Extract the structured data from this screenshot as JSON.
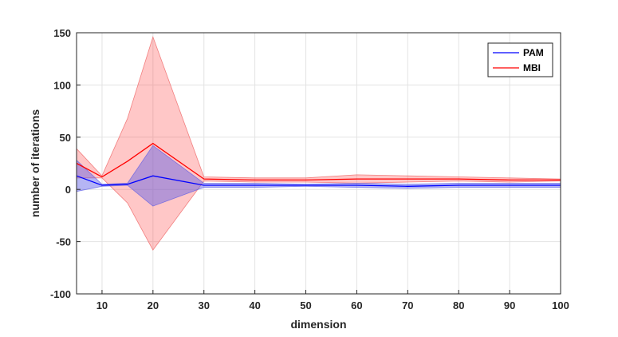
{
  "chart_data": {
    "type": "line",
    "xlabel": "dimension",
    "ylabel": "number of iterations",
    "xlim": [
      5,
      100
    ],
    "ylim": [
      -100,
      150
    ],
    "xticks": [
      10,
      20,
      30,
      40,
      50,
      60,
      70,
      80,
      90,
      100
    ],
    "yticks": [
      -100,
      -50,
      0,
      50,
      100,
      150
    ],
    "grid": true,
    "legend_position": "top-right",
    "x": [
      5,
      10,
      15,
      20,
      30,
      40,
      50,
      60,
      70,
      80,
      90,
      100
    ],
    "series": [
      {
        "name": "PAM",
        "color": "#0000ff",
        "mean": [
          13,
          4,
          5,
          13,
          4,
          4,
          4,
          4,
          3,
          4,
          4,
          4
        ],
        "upper": [
          28,
          5,
          6,
          42,
          6,
          6,
          5,
          6,
          5,
          6,
          6,
          6
        ],
        "lower": [
          -2,
          3,
          4,
          -16,
          2,
          2,
          3,
          2,
          1,
          2,
          2,
          2
        ]
      },
      {
        "name": "MBI",
        "color": "#ff0000",
        "mean": [
          25,
          12,
          27,
          44,
          10,
          9,
          9,
          10,
          10,
          10,
          9,
          9
        ],
        "upper": [
          39,
          13,
          68,
          146,
          12,
          11,
          11,
          14,
          13,
          12,
          11,
          10
        ],
        "lower": [
          11,
          11,
          -13,
          -58,
          8,
          7,
          7,
          6,
          7,
          8,
          7,
          8
        ]
      }
    ]
  }
}
